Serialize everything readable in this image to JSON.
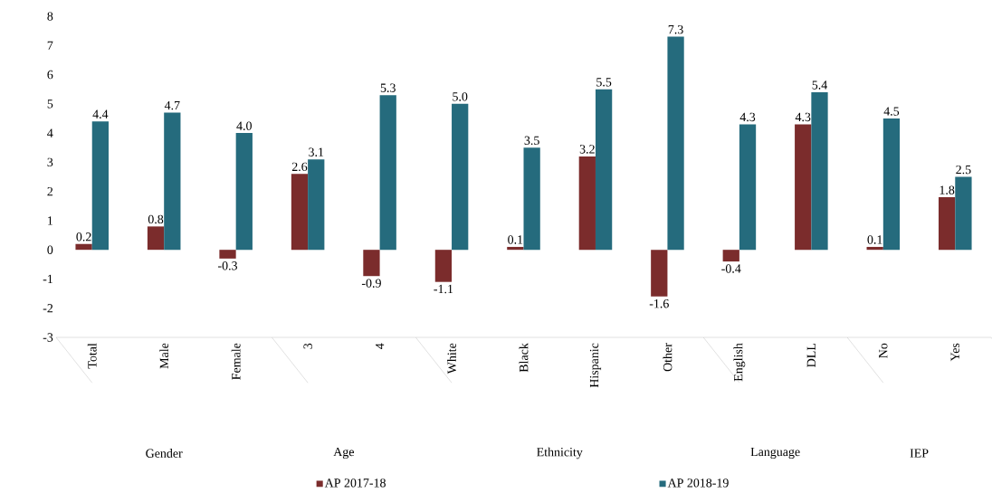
{
  "chart_data": {
    "type": "bar",
    "categories": [
      "Total",
      "Male",
      "Female",
      "3",
      "4",
      "White",
      "Black",
      "Hispanic",
      "Other",
      "English",
      "DLL",
      "No",
      "Yes"
    ],
    "series": [
      {
        "name": "AP 2017-18",
        "color": "#7b2c2c",
        "values": [
          0.2,
          0.8,
          -0.3,
          2.6,
          -0.9,
          -1.1,
          0.1,
          3.2,
          -1.6,
          -0.4,
          4.3,
          0.1,
          1.8
        ],
        "value_labels": [
          "0.2",
          "0.8",
          "-0.3",
          "2.6",
          "-0.9",
          "-1.1",
          "0.1",
          "3.2",
          "-1.6",
          "-0.4",
          "4.3",
          "0.1",
          "1.8"
        ]
      },
      {
        "name": "AP 2018-19",
        "color": "#256b7d",
        "values": [
          4.4,
          4.7,
          4.0,
          3.1,
          5.3,
          5.0,
          3.5,
          5.5,
          7.3,
          4.3,
          5.4,
          4.5,
          2.5
        ],
        "value_labels": [
          "4.4",
          "4.7",
          "4.0",
          "3.1",
          "5.3",
          "5.0",
          "3.5",
          "5.5",
          "7.3",
          "4.3",
          "5.4",
          "4.5",
          "2.5"
        ]
      }
    ],
    "annotations": [
      "Gender",
      "Age",
      "Ethnicity",
      "Language",
      "IEP"
    ],
    "ylim": [
      -3,
      8
    ],
    "yticks": [
      -3,
      -2,
      -1,
      0,
      1,
      2,
      3,
      4,
      5,
      6,
      7,
      8
    ],
    "grid": false,
    "legend": "bottom"
  }
}
